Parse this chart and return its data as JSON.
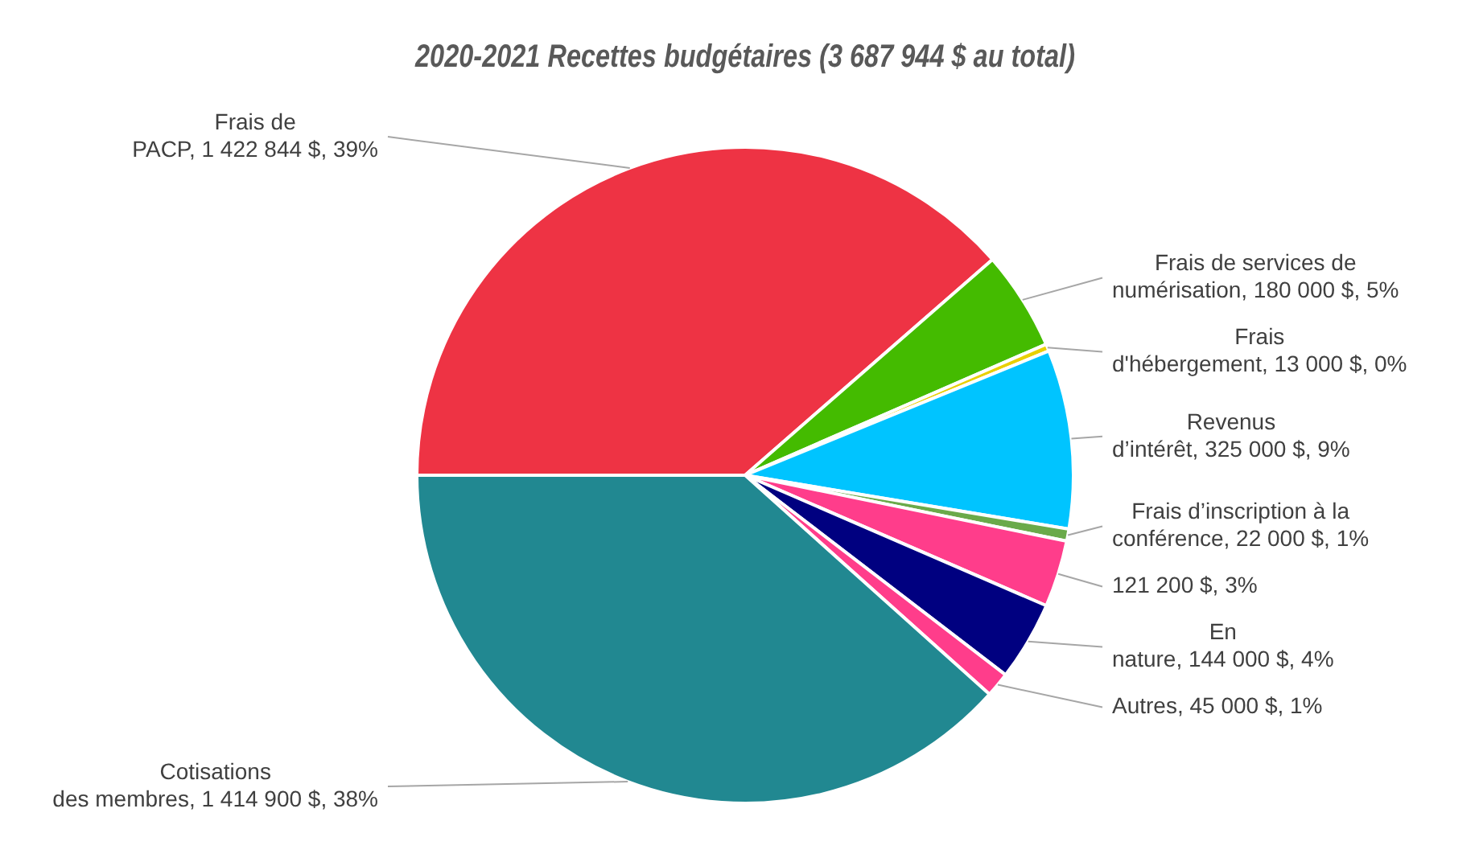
{
  "chart_data": {
    "type": "pie",
    "title": "2020-2021 Recettes budgétaires (3 687 944 $ au total)",
    "categories": [
      "Frais de PACP",
      "Frais de services de numérisation",
      "Frais d'hébergement",
      "Revenus d’intérêt",
      "Frais d’inscription à la conférence",
      null,
      "En nature",
      "Autres",
      "Cotisations des membres"
    ],
    "values": [
      1422844,
      180000,
      13000,
      325000,
      22000,
      121200,
      144000,
      45000,
      1414900
    ],
    "value_labels": [
      "1 422 844 $, 39%",
      "180 000 $, 5%",
      "13 000 $, 0%",
      "325 000 $, 9%",
      "22 000 $, 1%",
      "121 200 $, 3%",
      "144 000 $, 4%",
      "45 000 $, 1%",
      "1 414 900 $, 38%"
    ],
    "colors": [
      "#ee3344",
      "#44bb00",
      "#e8d000",
      "#00c4ff",
      "#6aaa4a",
      "#ff3d8b",
      "#000080",
      "#ff3d8b",
      "#218891"
    ],
    "legend": false
  }
}
